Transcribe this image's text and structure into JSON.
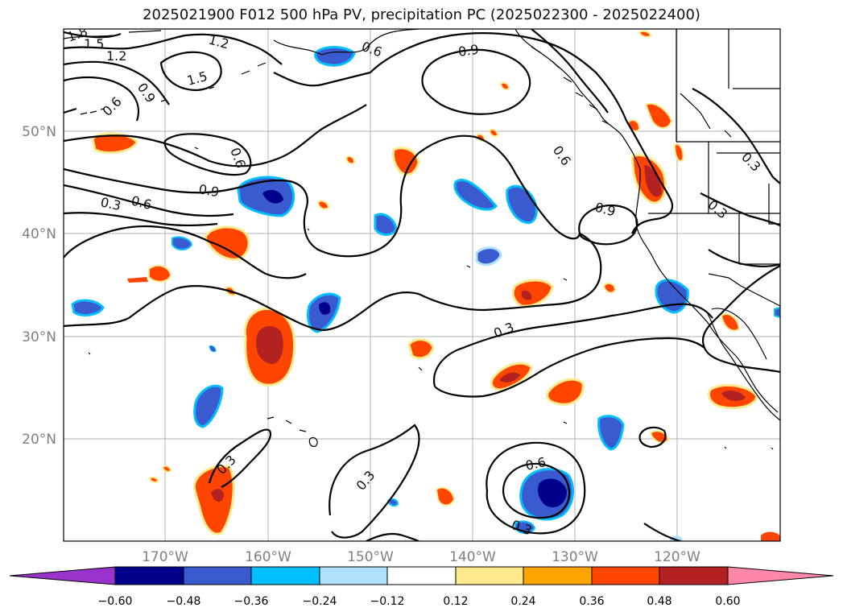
{
  "title": "2025021900 F012 500 hPa PV, precipitation PC (2025022300 - 2025022400)",
  "map": {
    "lat_labels": [
      "50°N",
      "40°N",
      "30°N",
      "20°N"
    ],
    "lon_labels": [
      "170°W",
      "160°W",
      "150°W",
      "140°W",
      "130°W",
      "120°W"
    ],
    "contour_labels": [
      "1.8",
      "1.5",
      "1.2",
      "1.2",
      "1.5",
      "0.9",
      "0.6",
      "0.6",
      "0.9",
      "0.6",
      "0.9",
      "0.3",
      "0.6",
      "0.6",
      "0.9",
      "0.3",
      "0.3",
      "0.3",
      "0.3",
      "0.6",
      "0.3",
      "0.3"
    ]
  },
  "colorbar": {
    "ticks": [
      "−0.60",
      "−0.48",
      "−0.36",
      "−0.24",
      "−0.12",
      "0.12",
      "0.24",
      "0.36",
      "0.48",
      "0.60"
    ],
    "colors": {
      "under": "#9933cc",
      "b1": "#00008b",
      "b2": "#3a5bcf",
      "b3": "#00bfff",
      "b4": "#aee2fa",
      "mid": "#ffffff",
      "p1": "#ffe98a",
      "p2": "#ffa500",
      "p3": "#ff4500",
      "p4": "#b22222",
      "over": "#ff88aa"
    }
  },
  "colors": {
    "land_outline": "#000000",
    "grid": "#b0b0b0"
  }
}
